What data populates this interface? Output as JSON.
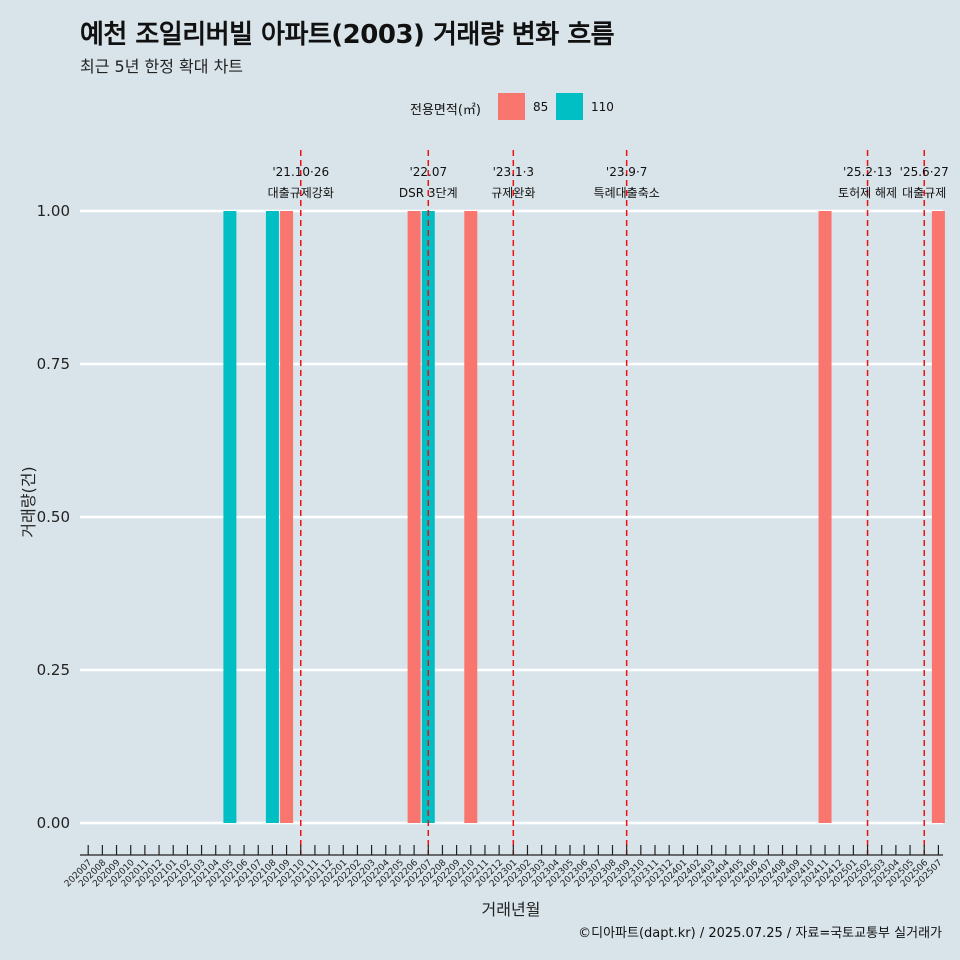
{
  "header": {
    "title": "예천 조일리버빌 아파트(2003) 거래량 변화 흐름",
    "subtitle": "최근 5년 한정 확대 차트"
  },
  "legend": {
    "title": "전용면적(㎡)",
    "items": [
      {
        "label": "85",
        "color": "#F8766D"
      },
      {
        "label": "110",
        "color": "#00BFC4"
      }
    ]
  },
  "caption": "©디아파트(dapt.kr) / 2025.07.25 / 자료=국토교통부 실거래가",
  "chart_data": {
    "type": "bar",
    "xlabel": "거래년월",
    "ylabel": "거래량(건)",
    "ylim": [
      0,
      1
    ],
    "yticks": [
      "0.00",
      "0.25",
      "0.50",
      "0.75",
      "1.00"
    ],
    "categories": [
      "202007",
      "202008",
      "202009",
      "202010",
      "202011",
      "202012",
      "202101",
      "202102",
      "202103",
      "202104",
      "202105",
      "202106",
      "202107",
      "202108",
      "202109",
      "202110",
      "202111",
      "202112",
      "202201",
      "202202",
      "202203",
      "202204",
      "202205",
      "202206",
      "202207",
      "202208",
      "202209",
      "202210",
      "202211",
      "202212",
      "202301",
      "202302",
      "202303",
      "202304",
      "202305",
      "202306",
      "202307",
      "202308",
      "202309",
      "202310",
      "202311",
      "202312",
      "202401",
      "202402",
      "202403",
      "202404",
      "202405",
      "202406",
      "202407",
      "202408",
      "202409",
      "202410",
      "202411",
      "202412",
      "202501",
      "202502",
      "202503",
      "202504",
      "202505",
      "202506",
      "202507"
    ],
    "series": [
      {
        "name": "85",
        "color": "#F8766D",
        "points": [
          {
            "x": "202109",
            "y": 1
          },
          {
            "x": "202206",
            "y": 1
          },
          {
            "x": "202210",
            "y": 1
          },
          {
            "x": "202411",
            "y": 1
          },
          {
            "x": "202507",
            "y": 1
          }
        ]
      },
      {
        "name": "110",
        "color": "#00BFC4",
        "points": [
          {
            "x": "202105",
            "y": 1
          },
          {
            "x": "202108",
            "y": 1
          },
          {
            "x": "202207",
            "y": 1
          }
        ]
      }
    ],
    "events": [
      {
        "x": "202110",
        "date": "'21.10·26",
        "label": "대출규제강화"
      },
      {
        "x": "202207",
        "date": "'22.07",
        "label": "DSR 3단계"
      },
      {
        "x": "202301",
        "date": "'23.1·3",
        "label": "규제완화"
      },
      {
        "x": "202309",
        "date": "'23.9·7",
        "label": "특례대출축소"
      },
      {
        "x": "202502",
        "date": "'25.2·13",
        "label": "토허제 해제"
      },
      {
        "x": "202506",
        "date": "'25.6·27",
        "label": "대출규제"
      }
    ]
  }
}
